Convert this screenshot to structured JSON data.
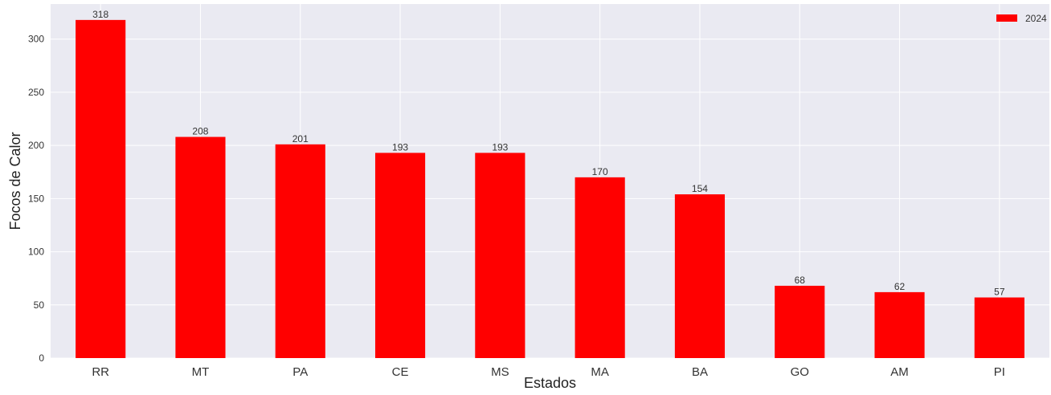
{
  "chart_data": {
    "type": "bar",
    "title": "",
    "xlabel": "Estados",
    "ylabel": "Focos de Calor",
    "categories": [
      "RR",
      "MT",
      "PA",
      "CE",
      "MS",
      "MA",
      "BA",
      "GO",
      "AM",
      "PI"
    ],
    "series": [
      {
        "name": "2024",
        "values": [
          318,
          208,
          201,
          193,
          193,
          170,
          154,
          68,
          62,
          57
        ],
        "color": "#ff0000"
      }
    ],
    "ylim": [
      0,
      333
    ],
    "yticks": [
      0,
      50,
      100,
      150,
      200,
      250,
      300
    ],
    "grid": true,
    "legend_position": "top-right",
    "data_labels": true,
    "colors": {
      "plot_background": "#eaeaf2",
      "grid": "#ffffff",
      "bar": "#ff0000"
    }
  }
}
